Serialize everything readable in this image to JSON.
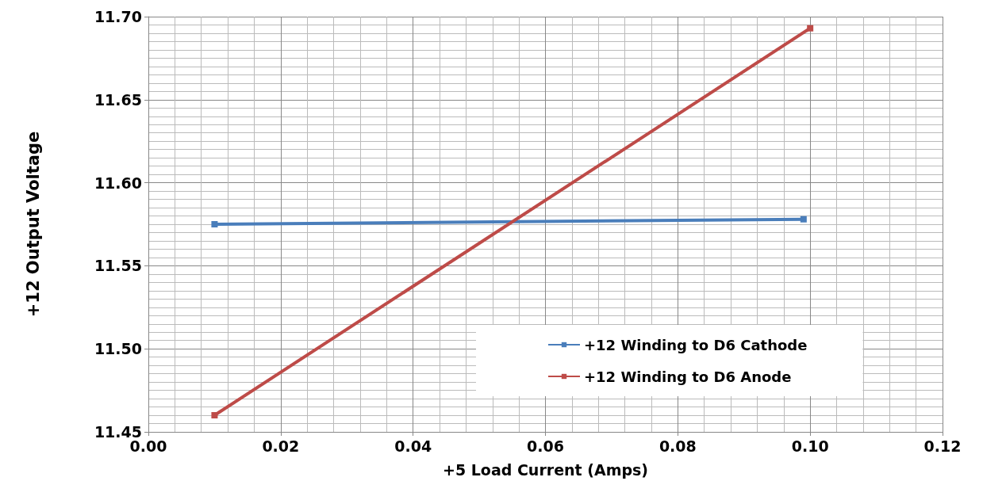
{
  "chart_data": {
    "type": "line",
    "xlabel": "+5 Load Current (Amps)",
    "ylabel": "+12 Output Voltage",
    "xlim": [
      0,
      0.12
    ],
    "xticks": [
      {
        "value": 0,
        "label": "0.00"
      },
      {
        "value": 0.02,
        "label": "0.02"
      },
      {
        "value": 0.04,
        "label": "0.04"
      },
      {
        "value": 0.06,
        "label": "0.06"
      },
      {
        "value": 0.08,
        "label": "0.08"
      },
      {
        "value": 0.1,
        "label": "0.10"
      },
      {
        "value": 0.12,
        "label": "0.12"
      }
    ],
    "ylim": [
      11.45,
      11.7
    ],
    "yticks": [
      {
        "value": 11.45,
        "label": "11.45"
      },
      {
        "value": 11.5,
        "label": "11.50"
      },
      {
        "value": 11.55,
        "label": "11.55"
      },
      {
        "value": 11.6,
        "label": "11.60"
      },
      {
        "value": 11.65,
        "label": "11.65"
      },
      {
        "value": 11.7,
        "label": "11.70"
      }
    ],
    "series": [
      {
        "name": "+12 Winding to D6 Cathode",
        "color": "#4a7ebb",
        "x": [
          0.01,
          0.099
        ],
        "values": [
          11.575,
          11.578
        ]
      },
      {
        "name": "+12 Winding to D6 Anode",
        "color": "#be4b48",
        "x": [
          0.01,
          0.1
        ],
        "values": [
          11.46,
          11.693
        ]
      }
    ],
    "grid": true,
    "legend": "bottom right",
    "marker": "square",
    "line_style": "solid"
  }
}
